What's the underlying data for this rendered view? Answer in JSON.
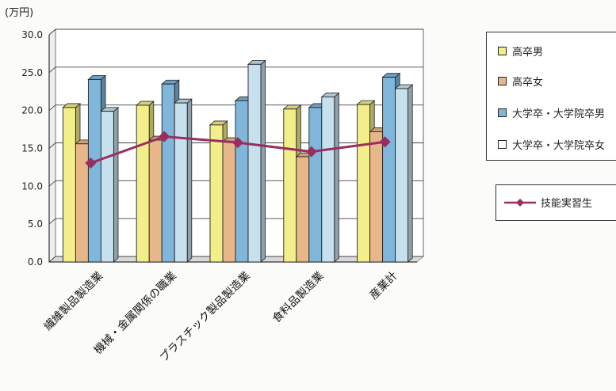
{
  "chart_data": {
    "type": "bar",
    "unit_label": "(万円)",
    "categories": [
      "繊維製品製造業",
      "機械・金属関係の職業",
      "プラスチック製品製造業",
      "食料品製造業",
      "産業計"
    ],
    "ylim": [
      0,
      30
    ],
    "yticks": [
      "0.0",
      "5.0",
      "10.0",
      "15.0",
      "20.0",
      "25.0",
      "30.0"
    ],
    "grid": true,
    "legend_position": "right",
    "series": [
      {
        "name": "高卒男",
        "kind": "bar",
        "color": "#f2ee8a",
        "values": [
          20.4,
          20.7,
          18.1,
          20.2,
          20.8
        ]
      },
      {
        "name": "高卒女",
        "kind": "bar",
        "color": "#e7b789",
        "values": [
          15.6,
          16.1,
          15.9,
          13.9,
          17.2
        ]
      },
      {
        "name": "大学卒・大学院卒男",
        "kind": "bar",
        "color": "#7fb6da",
        "values": [
          24.1,
          23.5,
          21.3,
          20.4,
          24.4
        ]
      },
      {
        "name": "大学卒・大学院卒女",
        "kind": "bar",
        "color": "#c7e0ee",
        "values": [
          19.9,
          21.0,
          26.1,
          21.8,
          22.9
        ]
      },
      {
        "name": "技能実習生",
        "kind": "line",
        "color": "#9a2d5f",
        "values": [
          12.7,
          16.2,
          15.4,
          14.2,
          15.5
        ]
      }
    ]
  }
}
